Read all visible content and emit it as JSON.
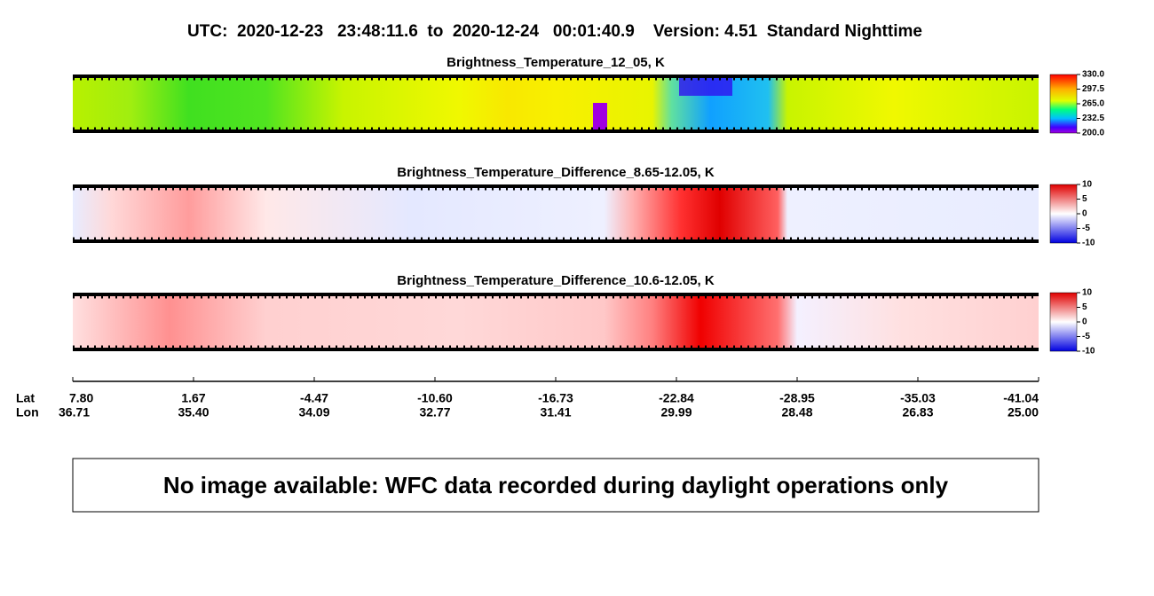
{
  "title": "UTC:  2020-12-23   23:48:11.6  to  2020-12-24   00:01:40.9    Version: 4.51  Standard Nighttime",
  "panels": [
    {
      "title": "Brightness_Temperature_12_05, K",
      "colorbar_ticks": [
        "330.0",
        "297.5",
        "265.0",
        "232.5",
        "200.0"
      ]
    },
    {
      "title": "Brightness_Temperature_Difference_8.65-12.05, K",
      "colorbar_ticks": [
        "10",
        "5",
        "0",
        "-5",
        "-10"
      ]
    },
    {
      "title": "Brightness_Temperature_Difference_10.6-12.05, K",
      "colorbar_ticks": [
        "10",
        "5",
        "0",
        "-5",
        "-10"
      ]
    }
  ],
  "axis": {
    "lat_label": "Lat",
    "lon_label": "Lon",
    "lat": [
      "7.80",
      "1.67",
      "-4.47",
      "-10.60",
      "-16.73",
      "-22.84",
      "-28.95",
      "-35.03",
      "-41.04"
    ],
    "lon": [
      "36.71",
      "35.40",
      "34.09",
      "32.77",
      "31.41",
      "29.99",
      "28.48",
      "26.83",
      "25.00"
    ]
  },
  "note": "No image available: WFC data recorded during daylight operations only"
}
